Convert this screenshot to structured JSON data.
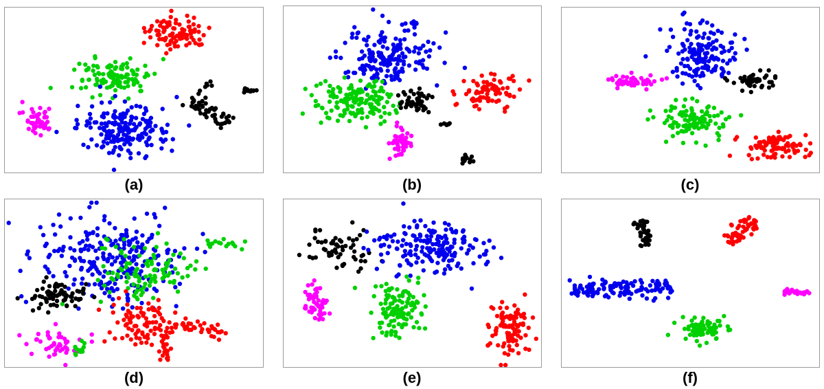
{
  "chart_data": [
    {
      "type": "scatter",
      "label": "(a)",
      "clusters": [
        {
          "color": "#ff0000",
          "n": 90,
          "shape": "blob",
          "cx": 0.66,
          "cy": 0.15,
          "rx": 0.12,
          "ry": 0.1
        },
        {
          "color": "#00d000",
          "n": 120,
          "shape": "blob",
          "cx": 0.42,
          "cy": 0.42,
          "rx": 0.14,
          "ry": 0.11
        },
        {
          "color": "#0000ee",
          "n": 190,
          "shape": "blob",
          "cx": 0.46,
          "cy": 0.73,
          "rx": 0.18,
          "ry": 0.15
        },
        {
          "color": "#ff00ff",
          "n": 45,
          "shape": "blob",
          "cx": 0.13,
          "cy": 0.67,
          "rx": 0.055,
          "ry": 0.08
        },
        {
          "color": "#000000",
          "n": 50,
          "shape": "bar",
          "x0": 0.71,
          "y0": 0.55,
          "x1": 0.86,
          "y1": 0.7,
          "w": 0.05
        },
        {
          "color": "#000000",
          "n": 12,
          "shape": "blob",
          "cx": 0.94,
          "cy": 0.5,
          "rx": 0.025,
          "ry": 0.015
        },
        {
          "color": "#000000",
          "n": 6,
          "shape": "bar",
          "x0": 0.75,
          "y0": 0.5,
          "x1": 0.81,
          "y1": 0.45,
          "w": 0.02
        }
      ]
    },
    {
      "type": "scatter",
      "label": "(b)",
      "clusters": [
        {
          "color": "#0000ee",
          "n": 180,
          "shape": "blob",
          "cx": 0.4,
          "cy": 0.3,
          "rx": 0.19,
          "ry": 0.17
        },
        {
          "color": "#0000ee",
          "n": 10,
          "shape": "blob",
          "cx": 0.5,
          "cy": 0.1,
          "rx": 0.02,
          "ry": 0.03
        },
        {
          "color": "#00d000",
          "n": 150,
          "shape": "blob",
          "cx": 0.27,
          "cy": 0.57,
          "rx": 0.15,
          "ry": 0.13
        },
        {
          "color": "#ff0000",
          "n": 80,
          "shape": "blob",
          "cx": 0.8,
          "cy": 0.5,
          "rx": 0.13,
          "ry": 0.12
        },
        {
          "color": "#000000",
          "n": 45,
          "shape": "blob",
          "cx": 0.51,
          "cy": 0.57,
          "rx": 0.06,
          "ry": 0.06
        },
        {
          "color": "#000000",
          "n": 15,
          "shape": "blob",
          "cx": 0.7,
          "cy": 0.91,
          "rx": 0.025,
          "ry": 0.025
        },
        {
          "color": "#000000",
          "n": 6,
          "shape": "blob",
          "cx": 0.63,
          "cy": 0.7,
          "rx": 0.015,
          "ry": 0.03
        },
        {
          "color": "#ff00ff",
          "n": 45,
          "shape": "blob",
          "cx": 0.45,
          "cy": 0.82,
          "rx": 0.05,
          "ry": 0.08
        }
      ]
    },
    {
      "type": "scatter",
      "label": "(c)",
      "clusters": [
        {
          "color": "#0000ee",
          "n": 160,
          "shape": "blob",
          "cx": 0.55,
          "cy": 0.28,
          "rx": 0.12,
          "ry": 0.17
        },
        {
          "color": "#ff00ff",
          "n": 45,
          "shape": "blob",
          "cx": 0.27,
          "cy": 0.44,
          "rx": 0.1,
          "ry": 0.04
        },
        {
          "color": "#000000",
          "n": 45,
          "shape": "blob",
          "cx": 0.75,
          "cy": 0.44,
          "rx": 0.09,
          "ry": 0.05
        },
        {
          "color": "#00d000",
          "n": 110,
          "shape": "blob",
          "cx": 0.5,
          "cy": 0.67,
          "rx": 0.13,
          "ry": 0.11
        },
        {
          "color": "#ff0000",
          "n": 90,
          "shape": "blob",
          "cx": 0.83,
          "cy": 0.84,
          "rx": 0.12,
          "ry": 0.08
        }
      ]
    },
    {
      "type": "scatter",
      "label": "(d)",
      "clusters": [
        {
          "color": "#0000ee",
          "n": 260,
          "shape": "blob",
          "cx": 0.4,
          "cy": 0.35,
          "rx": 0.26,
          "ry": 0.28
        },
        {
          "color": "#00d000",
          "n": 110,
          "shape": "blob",
          "cx": 0.56,
          "cy": 0.43,
          "rx": 0.2,
          "ry": 0.18
        },
        {
          "color": "#00d000",
          "n": 15,
          "shape": "blob",
          "cx": 0.83,
          "cy": 0.27,
          "rx": 0.07,
          "ry": 0.05
        },
        {
          "color": "#000000",
          "n": 75,
          "shape": "blob",
          "cx": 0.2,
          "cy": 0.57,
          "rx": 0.13,
          "ry": 0.08
        },
        {
          "color": "#ff0000",
          "n": 90,
          "shape": "blob",
          "cx": 0.53,
          "cy": 0.74,
          "rx": 0.12,
          "ry": 0.13
        },
        {
          "color": "#ff0000",
          "n": 35,
          "shape": "bar",
          "x0": 0.66,
          "y0": 0.73,
          "x1": 0.85,
          "y1": 0.8,
          "w": 0.04
        },
        {
          "color": "#ff0000",
          "n": 20,
          "shape": "bar",
          "x0": 0.61,
          "y0": 0.78,
          "x1": 0.62,
          "y1": 0.95,
          "w": 0.02
        },
        {
          "color": "#ff00ff",
          "n": 45,
          "shape": "blob",
          "cx": 0.19,
          "cy": 0.85,
          "rx": 0.1,
          "ry": 0.08
        },
        {
          "color": "#00d000",
          "n": 12,
          "shape": "blob",
          "cx": 0.28,
          "cy": 0.89,
          "rx": 0.03,
          "ry": 0.05
        }
      ]
    },
    {
      "type": "scatter",
      "label": "(e)",
      "clusters": [
        {
          "color": "#000000",
          "n": 60,
          "shape": "blob",
          "cx": 0.23,
          "cy": 0.3,
          "rx": 0.12,
          "ry": 0.13
        },
        {
          "color": "#0000ee",
          "n": 180,
          "shape": "blob",
          "cx": 0.58,
          "cy": 0.28,
          "rx": 0.21,
          "ry": 0.15
        },
        {
          "color": "#ff00ff",
          "n": 50,
          "shape": "blob",
          "cx": 0.12,
          "cy": 0.6,
          "rx": 0.05,
          "ry": 0.12
        },
        {
          "color": "#00d000",
          "n": 120,
          "shape": "blob",
          "cx": 0.43,
          "cy": 0.67,
          "rx": 0.1,
          "ry": 0.17
        },
        {
          "color": "#ff0000",
          "n": 100,
          "shape": "blob",
          "cx": 0.88,
          "cy": 0.77,
          "rx": 0.08,
          "ry": 0.16
        }
      ]
    },
    {
      "type": "scatter",
      "label": "(f)",
      "clusters": [
        {
          "color": "#000000",
          "n": 40,
          "shape": "bar",
          "x0": 0.3,
          "y0": 0.12,
          "x1": 0.33,
          "y1": 0.28,
          "w": 0.03
        },
        {
          "color": "#ff0000",
          "n": 55,
          "shape": "bar",
          "x0": 0.64,
          "y0": 0.25,
          "x1": 0.75,
          "y1": 0.12,
          "w": 0.05
        },
        {
          "color": "#0000ee",
          "n": 130,
          "shape": "bar",
          "x0": 0.03,
          "y0": 0.54,
          "x1": 0.43,
          "y1": 0.52,
          "w": 0.06
        },
        {
          "color": "#ff00ff",
          "n": 35,
          "shape": "bar",
          "x0": 0.86,
          "y0": 0.55,
          "x1": 0.96,
          "y1": 0.55,
          "w": 0.02
        },
        {
          "color": "#00d000",
          "n": 80,
          "shape": "blob",
          "cx": 0.55,
          "cy": 0.77,
          "rx": 0.1,
          "ry": 0.07
        }
      ]
    }
  ]
}
